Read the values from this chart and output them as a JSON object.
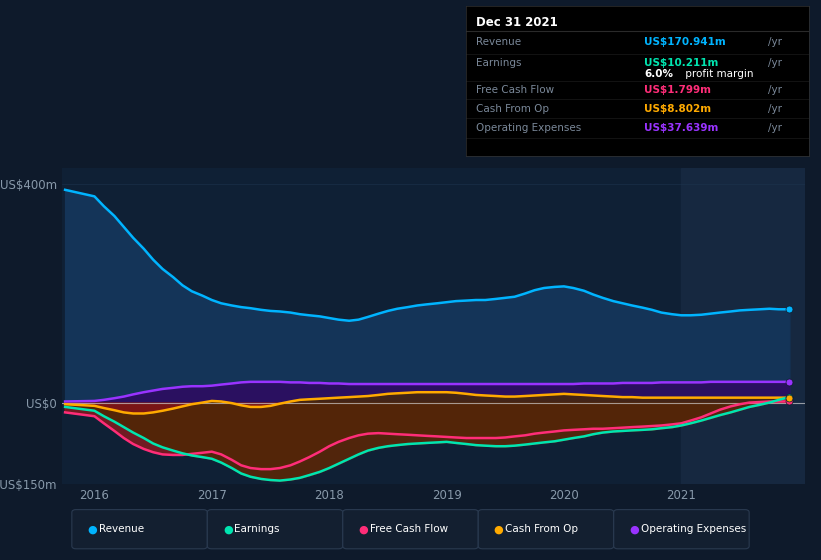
{
  "bg_color": "#0e1a2b",
  "plot_bg": "#0e1a2b",
  "plot_area_bg": "#0f2035",
  "highlight_bg": "#162840",
  "grid_color": "#1e3550",
  "zero_line_color": "#cccccc",
  "ylim": [
    -150,
    430
  ],
  "yticks": [
    -150,
    0,
    400
  ],
  "ytick_labels": [
    "-US$150m",
    "US$0",
    "US$400m"
  ],
  "xtick_labels": [
    "2016",
    "2017",
    "2018",
    "2019",
    "2020",
    "2021"
  ],
  "xtick_positions": [
    2016,
    2017,
    2018,
    2019,
    2020,
    2021
  ],
  "revenue_color": "#00b4ff",
  "revenue_fill": "#143458",
  "earnings_color": "#00e5b0",
  "free_cash_flow_color": "#ff2d78",
  "cash_from_op_color": "#ffaa00",
  "operating_expenses_color": "#9933ff",
  "operating_expenses_fill": "#2a1060",
  "dark_red_fill": "#7a1515",
  "purple_red_fill": "#4a1040",
  "info_box": {
    "title": "Dec 31 2021",
    "revenue_label": "Revenue",
    "revenue_value": "US$170.941m",
    "revenue_color": "#00b4ff",
    "earnings_label": "Earnings",
    "earnings_value": "US$10.211m",
    "earnings_color": "#00e5b0",
    "margin_text_bold": "6.0%",
    "margin_text_rest": " profit margin",
    "fcf_label": "Free Cash Flow",
    "fcf_value": "US$1.799m",
    "fcf_color": "#ff2d78",
    "cfo_label": "Cash From Op",
    "cfo_value": "US$8.802m",
    "cfo_color": "#ffaa00",
    "opex_label": "Operating Expenses",
    "opex_value": "US$37.639m",
    "opex_color": "#9933ff"
  },
  "legend_items": [
    {
      "label": "Revenue",
      "color": "#00b4ff"
    },
    {
      "label": "Earnings",
      "color": "#00e5b0"
    },
    {
      "label": "Free Cash Flow",
      "color": "#ff2d78"
    },
    {
      "label": "Cash From Op",
      "color": "#ffaa00"
    },
    {
      "label": "Operating Expenses",
      "color": "#9933ff"
    }
  ],
  "x": [
    2015.75,
    2016.0,
    2016.08,
    2016.17,
    2016.25,
    2016.33,
    2016.42,
    2016.5,
    2016.58,
    2016.67,
    2016.75,
    2016.83,
    2016.92,
    2017.0,
    2017.08,
    2017.17,
    2017.25,
    2017.33,
    2017.42,
    2017.5,
    2017.58,
    2017.67,
    2017.75,
    2017.83,
    2017.92,
    2018.0,
    2018.08,
    2018.17,
    2018.25,
    2018.33,
    2018.42,
    2018.5,
    2018.58,
    2018.67,
    2018.75,
    2018.83,
    2018.92,
    2019.0,
    2019.08,
    2019.17,
    2019.25,
    2019.33,
    2019.42,
    2019.5,
    2019.58,
    2019.67,
    2019.75,
    2019.83,
    2019.92,
    2020.0,
    2020.08,
    2020.17,
    2020.25,
    2020.33,
    2020.42,
    2020.5,
    2020.58,
    2020.67,
    2020.75,
    2020.83,
    2020.92,
    2021.0,
    2021.08,
    2021.17,
    2021.25,
    2021.33,
    2021.42,
    2021.5,
    2021.58,
    2021.67,
    2021.75,
    2021.83,
    2021.92
  ],
  "revenue": [
    390,
    378,
    360,
    342,
    322,
    302,
    282,
    262,
    245,
    230,
    215,
    204,
    196,
    188,
    182,
    178,
    175,
    173,
    170,
    168,
    167,
    165,
    162,
    160,
    158,
    155,
    152,
    150,
    152,
    157,
    163,
    168,
    172,
    175,
    178,
    180,
    182,
    184,
    186,
    187,
    188,
    188,
    190,
    192,
    194,
    200,
    206,
    210,
    212,
    213,
    210,
    205,
    198,
    192,
    186,
    182,
    178,
    174,
    170,
    165,
    162,
    160,
    160,
    161,
    163,
    165,
    167,
    169,
    170,
    171,
    172,
    171,
    171
  ],
  "earnings": [
    -8,
    -15,
    -25,
    -35,
    -45,
    -55,
    -65,
    -75,
    -82,
    -88,
    -93,
    -97,
    -100,
    -103,
    -110,
    -120,
    -130,
    -136,
    -140,
    -142,
    -143,
    -141,
    -138,
    -133,
    -127,
    -120,
    -112,
    -103,
    -95,
    -88,
    -83,
    -80,
    -78,
    -76,
    -75,
    -74,
    -73,
    -72,
    -74,
    -76,
    -78,
    -79,
    -80,
    -80,
    -79,
    -77,
    -75,
    -73,
    -71,
    -68,
    -65,
    -62,
    -58,
    -55,
    -53,
    -52,
    -51,
    -50,
    -49,
    -47,
    -45,
    -42,
    -38,
    -33,
    -28,
    -23,
    -18,
    -13,
    -8,
    -4,
    0,
    5,
    10
  ],
  "free_cash_flow": [
    -18,
    -25,
    -38,
    -52,
    -65,
    -76,
    -85,
    -91,
    -95,
    -96,
    -96,
    -94,
    -92,
    -90,
    -95,
    -105,
    -115,
    -120,
    -122,
    -122,
    -120,
    -115,
    -108,
    -100,
    -90,
    -80,
    -72,
    -65,
    -60,
    -57,
    -56,
    -57,
    -58,
    -59,
    -60,
    -61,
    -62,
    -63,
    -64,
    -65,
    -65,
    -65,
    -65,
    -64,
    -62,
    -60,
    -57,
    -55,
    -53,
    -51,
    -50,
    -49,
    -48,
    -48,
    -47,
    -46,
    -45,
    -44,
    -43,
    -42,
    -40,
    -38,
    -33,
    -27,
    -20,
    -13,
    -7,
    -3,
    0,
    1,
    2,
    2,
    2
  ],
  "cash_from_op": [
    -3,
    -6,
    -10,
    -14,
    -18,
    -20,
    -20,
    -18,
    -15,
    -11,
    -7,
    -3,
    0,
    3,
    2,
    -1,
    -5,
    -8,
    -8,
    -6,
    -2,
    2,
    5,
    6,
    7,
    8,
    9,
    10,
    11,
    12,
    14,
    16,
    17,
    18,
    19,
    19,
    19,
    19,
    18,
    16,
    14,
    13,
    12,
    11,
    11,
    12,
    13,
    14,
    15,
    16,
    15,
    14,
    13,
    12,
    11,
    10,
    10,
    9,
    9,
    9,
    9,
    9,
    9,
    9,
    9,
    9,
    9,
    9,
    9,
    9,
    9,
    9,
    9
  ],
  "operating_expenses": [
    2,
    3,
    5,
    8,
    11,
    15,
    19,
    22,
    25,
    27,
    29,
    30,
    30,
    31,
    33,
    35,
    37,
    38,
    38,
    38,
    38,
    37,
    37,
    36,
    36,
    35,
    35,
    34,
    34,
    34,
    34,
    34,
    34,
    34,
    34,
    34,
    34,
    34,
    34,
    34,
    34,
    34,
    34,
    34,
    34,
    34,
    34,
    34,
    34,
    34,
    34,
    35,
    35,
    35,
    35,
    36,
    36,
    36,
    36,
    37,
    37,
    37,
    37,
    37,
    38,
    38,
    38,
    38,
    38,
    38,
    38,
    38,
    38
  ]
}
